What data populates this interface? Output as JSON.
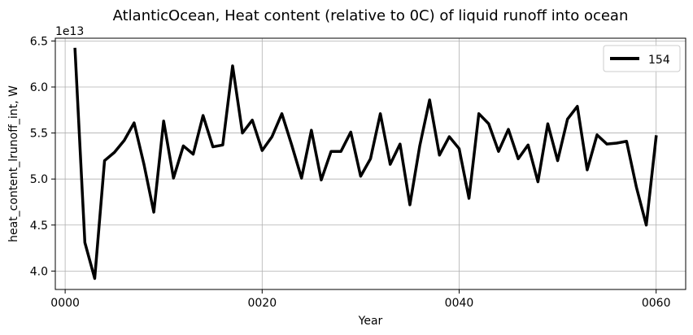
{
  "chart_data": {
    "type": "line",
    "title": "AtlanticOcean, Heat content (relative to 0C) of liquid runoff into ocean",
    "xlabel": "Year",
    "ylabel": "heat_content_lrunoff_int, W",
    "y_offset_label": "1e13",
    "xlim": [
      -1,
      63
    ],
    "ylim": [
      3.8,
      6.53
    ],
    "x_ticks": [
      0,
      20,
      40,
      60
    ],
    "x_tick_labels": [
      "0000",
      "0020",
      "0040",
      "0060"
    ],
    "y_ticks": [
      4.0,
      4.5,
      5.0,
      5.5,
      6.0,
      6.5
    ],
    "y_tick_labels": [
      "4.0",
      "4.5",
      "5.0",
      "5.5",
      "6.0",
      "6.5"
    ],
    "grid": true,
    "legend_position": "top-right",
    "series": [
      {
        "name": "154",
        "color": "#000000",
        "x": [
          1,
          2,
          3,
          4,
          5,
          6,
          7,
          8,
          9,
          10,
          11,
          12,
          13,
          14,
          15,
          16,
          17,
          18,
          19,
          20,
          21,
          22,
          23,
          24,
          25,
          26,
          27,
          28,
          29,
          30,
          31,
          32,
          33,
          34,
          35,
          36,
          37,
          38,
          39,
          40,
          41,
          42,
          43,
          44,
          45,
          46,
          47,
          48,
          49,
          50,
          51,
          52,
          53,
          54,
          55,
          56,
          57,
          58,
          59,
          60
        ],
        "values": [
          6.41,
          4.31,
          3.92,
          5.2,
          5.29,
          5.42,
          5.61,
          5.16,
          4.64,
          5.63,
          5.01,
          5.36,
          5.27,
          5.69,
          5.35,
          5.37,
          6.23,
          5.5,
          5.64,
          5.31,
          5.46,
          5.71,
          5.37,
          5.01,
          5.53,
          4.99,
          5.3,
          5.3,
          5.51,
          5.03,
          5.22,
          5.71,
          5.16,
          5.38,
          4.72,
          5.36,
          5.86,
          5.26,
          5.46,
          5.33,
          4.79,
          5.71,
          5.6,
          5.3,
          5.54,
          5.22,
          5.37,
          4.97,
          5.6,
          5.2,
          5.65,
          5.79,
          5.1,
          5.48,
          5.38,
          5.39,
          5.41,
          4.91,
          4.5,
          5.46
        ]
      }
    ]
  }
}
